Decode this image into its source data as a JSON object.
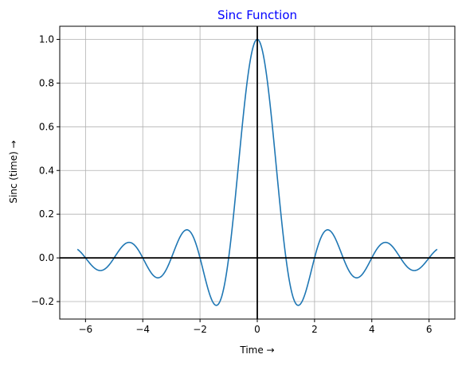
{
  "chart_data": {
    "type": "line",
    "title": "Sinc Function",
    "xlabel": "Time →",
    "ylabel": "Sinc (time) →",
    "xlim": [
      -6.9,
      6.9
    ],
    "ylim": [
      -0.28,
      1.06
    ],
    "x_ticks": [
      -6,
      -4,
      -2,
      0,
      2,
      4,
      6
    ],
    "x_tick_labels": [
      "−6",
      "−4",
      "−2",
      "0",
      "2",
      "4",
      "6"
    ],
    "y_ticks": [
      -0.2,
      0.0,
      0.2,
      0.4,
      0.6,
      0.8,
      1.0
    ],
    "y_tick_labels": [
      "−0.2",
      "0.0",
      "0.2",
      "0.4",
      "0.6",
      "0.8",
      "1.0"
    ],
    "grid": true,
    "reference_lines": {
      "x": 0,
      "y": 0
    },
    "series": [
      {
        "x_range": [
          -6.2832,
          6.2832
        ],
        "x": [
          -6.28,
          -6.0,
          -5.75,
          -5.5,
          -5.25,
          -5.0,
          -4.75,
          -4.5,
          -4.25,
          -4.0,
          -3.75,
          -3.5,
          -3.25,
          -3.0,
          -2.75,
          -2.5,
          -2.25,
          -2.0,
          -1.75,
          -1.5,
          -1.25,
          -1.0,
          -0.75,
          -0.5,
          -0.25,
          0.0,
          0.25,
          0.5,
          0.75,
          1.0,
          1.25,
          1.5,
          1.75,
          2.0,
          2.25,
          2.5,
          2.75,
          3.0,
          3.25,
          3.5,
          3.75,
          4.0,
          4.25,
          4.5,
          4.75,
          5.0,
          5.25,
          5.5,
          5.75,
          6.0,
          6.28
        ],
        "values": [
          0.038,
          0.0,
          -0.039,
          -0.058,
          -0.043,
          0.0,
          0.047,
          0.071,
          0.053,
          0.0,
          -0.06,
          -0.091,
          -0.069,
          0.0,
          0.082,
          0.127,
          0.1,
          0.0,
          -0.129,
          -0.212,
          -0.18,
          0.0,
          0.3,
          0.637,
          0.9,
          1.0,
          0.9,
          0.637,
          0.3,
          0.0,
          -0.18,
          -0.212,
          -0.129,
          0.0,
          0.1,
          0.127,
          0.082,
          0.0,
          -0.069,
          -0.091,
          -0.06,
          0.0,
          0.053,
          0.071,
          0.047,
          0.0,
          -0.043,
          -0.058,
          -0.039,
          0.0,
          0.038
        ]
      }
    ]
  },
  "colors": {
    "line": "#1f77b4",
    "title": "#0000ff",
    "axis": "#000000",
    "grid": "#b0b0b0",
    "reference": "#000000"
  }
}
